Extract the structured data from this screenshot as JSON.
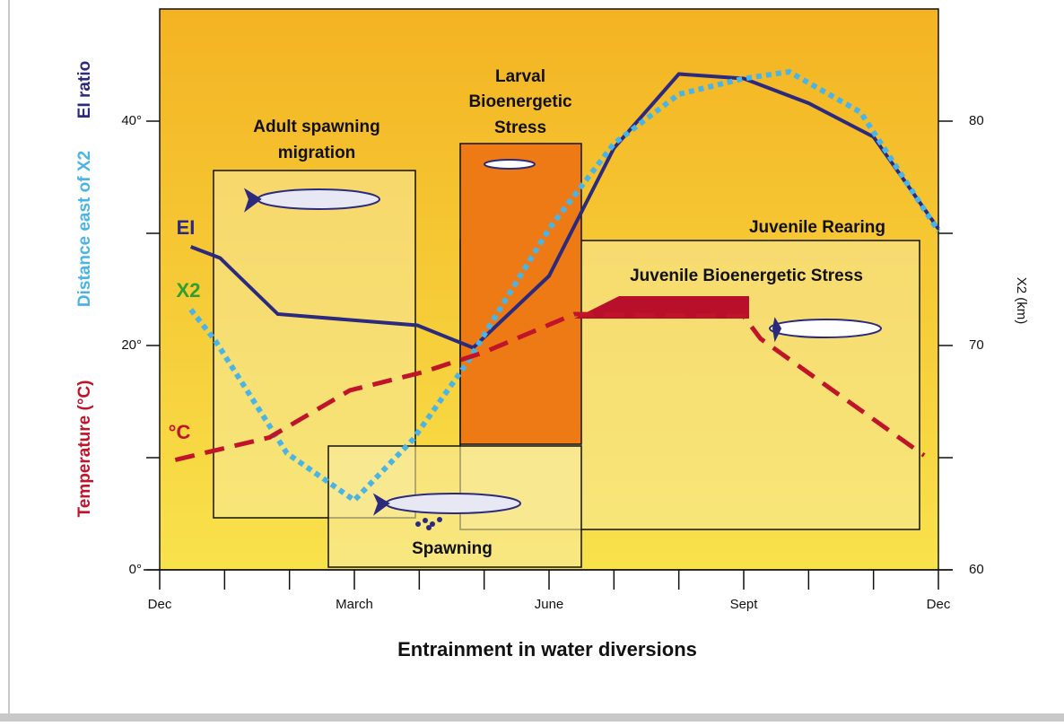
{
  "chart_data": {
    "type": "line",
    "xlabel": "Entrainment in water diversions",
    "ylabels": [
      {
        "text": "EI ratio",
        "color": "#2b2a7c"
      },
      {
        "text": "Distance east of X2",
        "color": "#4ab4e6"
      },
      {
        "text": "Temperature (°C)",
        "color": "#c0142a"
      }
    ],
    "y2label": "X2 (km)",
    "xlim": [
      0,
      12
    ],
    "xticks": [
      {
        "value": 0,
        "label": "Dec"
      },
      {
        "value": 3,
        "label": "March"
      },
      {
        "value": 6,
        "label": "June"
      },
      {
        "value": 9,
        "label": "Sept"
      },
      {
        "value": 12,
        "label": "Dec"
      }
    ],
    "xminor": [
      1,
      2,
      4,
      5,
      7,
      8,
      10,
      11
    ],
    "ylim": [
      0,
      50
    ],
    "yticks": [
      {
        "value": 0,
        "label": "0°"
      },
      {
        "value": 20,
        "label": "20°"
      },
      {
        "value": 40,
        "label": "40°"
      }
    ],
    "yminor": [
      10,
      30
    ],
    "y2lim": [
      60,
      85
    ],
    "y2ticks": [
      60,
      70,
      80
    ],
    "y2minor": [
      65,
      75
    ],
    "series": [
      {
        "name": "EI",
        "color": "#2b2a7c",
        "style": "solid",
        "x": [
          0.48,
          0.93,
          1.82,
          3.97,
          4.83,
          6.0,
          7.0,
          8.0,
          9.0,
          10.0,
          11.0,
          12.0
        ],
        "values": [
          28.8,
          27.8,
          22.8,
          21.8,
          19.8,
          26.2,
          37.6,
          44.2,
          43.8,
          41.6,
          38.6,
          30.4
        ]
      },
      {
        "name": "X2",
        "color": "#4ab4e6",
        "label_color": "#2fa02f",
        "style": "dotted",
        "axis": "y2",
        "x": [
          0.48,
          0.86,
          1.96,
          3.0,
          3.9,
          4.73,
          6.0,
          7.0,
          8.0,
          9.0,
          9.7,
          10.8,
          12.0
        ],
        "values": [
          71.6,
          70.2,
          65.2,
          63.1,
          65.8,
          69.2,
          75.2,
          79.0,
          81.2,
          81.9,
          82.2,
          80.4,
          75.1
        ]
      },
      {
        "name": "°C",
        "color": "#c0142a",
        "style": "dashed",
        "x": [
          0.24,
          1.69,
          2.93,
          4.04,
          5.0,
          6.39,
          9.0,
          9.26,
          11.78
        ],
        "values": [
          9.8,
          11.8,
          16.0,
          17.6,
          19.4,
          22.8,
          22.6,
          20.6,
          10.2
        ]
      }
    ],
    "annotations": {
      "adult_spawning": [
        "Adult spawning",
        "migration"
      ],
      "larval": [
        "Larval",
        "Bioenergetic",
        "Stress"
      ],
      "spawning": "Spawning",
      "juvenile_rearing": "Juvenile Rearing",
      "juvenile_stress": "Juvenile Bioenergetic Stress"
    }
  }
}
